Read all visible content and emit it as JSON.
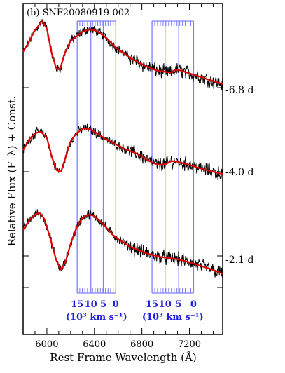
{
  "chart_data": {
    "type": "line",
    "title": "(b) SNF20080919-002",
    "xlabel": "Rest Frame Wavelength (Å)",
    "ylabel": "Relative Flux (F_λ) + Const.",
    "xlim": [
      5800,
      7480
    ],
    "x_ticks": [
      6000,
      6400,
      6800,
      7200
    ],
    "x_tick_labels": [
      "6000",
      "6400",
      "6800",
      "7200"
    ],
    "velocity_scale_labels": [
      "15",
      "10",
      "5",
      "0"
    ],
    "velocity_unit_label": "(10³ km s⁻¹)",
    "line_colors": {
      "data": "#000000",
      "fit": "#e00000",
      "velocity": "#8080ff",
      "velocity_text": "#2020e0"
    },
    "velocity_groups": [
      {
        "lines_x": [
          6255,
          6370,
          6475,
          6580
        ],
        "tick_spacing": 24
      },
      {
        "lines_x": [
          6885,
          6995,
          7110,
          7235
        ],
        "tick_spacing": 24
      }
    ],
    "series": [
      {
        "name": "-6.8 d",
        "fit": [
          [
            5800,
            0.42
          ],
          [
            5850,
            0.55
          ],
          [
            5900,
            0.7
          ],
          [
            5960,
            0.82
          ],
          [
            6000,
            0.72
          ],
          [
            6040,
            0.4
          ],
          [
            6080,
            0.2
          ],
          [
            6110,
            0.19
          ],
          [
            6150,
            0.4
          ],
          [
            6200,
            0.56
          ],
          [
            6250,
            0.62
          ],
          [
            6300,
            0.68
          ],
          [
            6350,
            0.71
          ],
          [
            6400,
            0.7
          ],
          [
            6450,
            0.66
          ],
          [
            6500,
            0.6
          ],
          [
            6550,
            0.52
          ],
          [
            6600,
            0.45
          ],
          [
            6650,
            0.4
          ],
          [
            6700,
            0.34
          ],
          [
            6750,
            0.3
          ],
          [
            6800,
            0.26
          ],
          [
            6850,
            0.22
          ],
          [
            6900,
            0.19
          ],
          [
            6950,
            0.17
          ],
          [
            7000,
            0.16
          ],
          [
            7050,
            0.15
          ],
          [
            7080,
            0.19
          ],
          [
            7120,
            0.18
          ],
          [
            7200,
            0.14
          ],
          [
            7300,
            0.09
          ],
          [
            7400,
            0.04
          ],
          [
            7480,
            0.0
          ]
        ]
      },
      {
        "name": "-4.0 d",
        "fit": [
          [
            5800,
            0.28
          ],
          [
            5850,
            0.42
          ],
          [
            5900,
            0.5
          ],
          [
            5950,
            0.52
          ],
          [
            6000,
            0.44
          ],
          [
            6040,
            0.2
          ],
          [
            6080,
            0.02
          ],
          [
            6120,
            0.0
          ],
          [
            6160,
            0.2
          ],
          [
            6200,
            0.4
          ],
          [
            6250,
            0.5
          ],
          [
            6300,
            0.56
          ],
          [
            6350,
            0.56
          ],
          [
            6400,
            0.52
          ],
          [
            6450,
            0.47
          ],
          [
            6500,
            0.42
          ],
          [
            6550,
            0.38
          ],
          [
            6600,
            0.34
          ],
          [
            6650,
            0.3
          ],
          [
            6700,
            0.27
          ],
          [
            6750,
            0.24
          ],
          [
            6800,
            0.2
          ],
          [
            6850,
            0.15
          ],
          [
            6900,
            0.11
          ],
          [
            6950,
            0.09
          ],
          [
            7000,
            0.1
          ],
          [
            7050,
            0.14
          ],
          [
            7100,
            0.13
          ],
          [
            7200,
            0.09
          ],
          [
            7300,
            0.04
          ],
          [
            7400,
            0.0
          ],
          [
            7480,
            -0.03
          ]
        ]
      },
      {
        "name": "-2.1 d",
        "fit": [
          [
            5800,
            0.52
          ],
          [
            5850,
            0.64
          ],
          [
            5900,
            0.72
          ],
          [
            5940,
            0.74
          ],
          [
            5980,
            0.66
          ],
          [
            6030,
            0.4
          ],
          [
            6080,
            0.12
          ],
          [
            6120,
            0.0
          ],
          [
            6160,
            0.12
          ],
          [
            6200,
            0.34
          ],
          [
            6250,
            0.55
          ],
          [
            6300,
            0.68
          ],
          [
            6350,
            0.72
          ],
          [
            6400,
            0.7
          ],
          [
            6450,
            0.63
          ],
          [
            6500,
            0.55
          ],
          [
            6550,
            0.46
          ],
          [
            6600,
            0.4
          ],
          [
            6650,
            0.35
          ],
          [
            6700,
            0.3
          ],
          [
            6750,
            0.27
          ],
          [
            6800,
            0.24
          ],
          [
            6850,
            0.21
          ],
          [
            6900,
            0.19
          ],
          [
            6950,
            0.17
          ],
          [
            7000,
            0.16
          ],
          [
            7050,
            0.15
          ],
          [
            7100,
            0.14
          ],
          [
            7150,
            0.12
          ],
          [
            7200,
            0.1
          ],
          [
            7300,
            0.05
          ],
          [
            7400,
            0.0
          ],
          [
            7480,
            -0.05
          ]
        ]
      }
    ]
  }
}
